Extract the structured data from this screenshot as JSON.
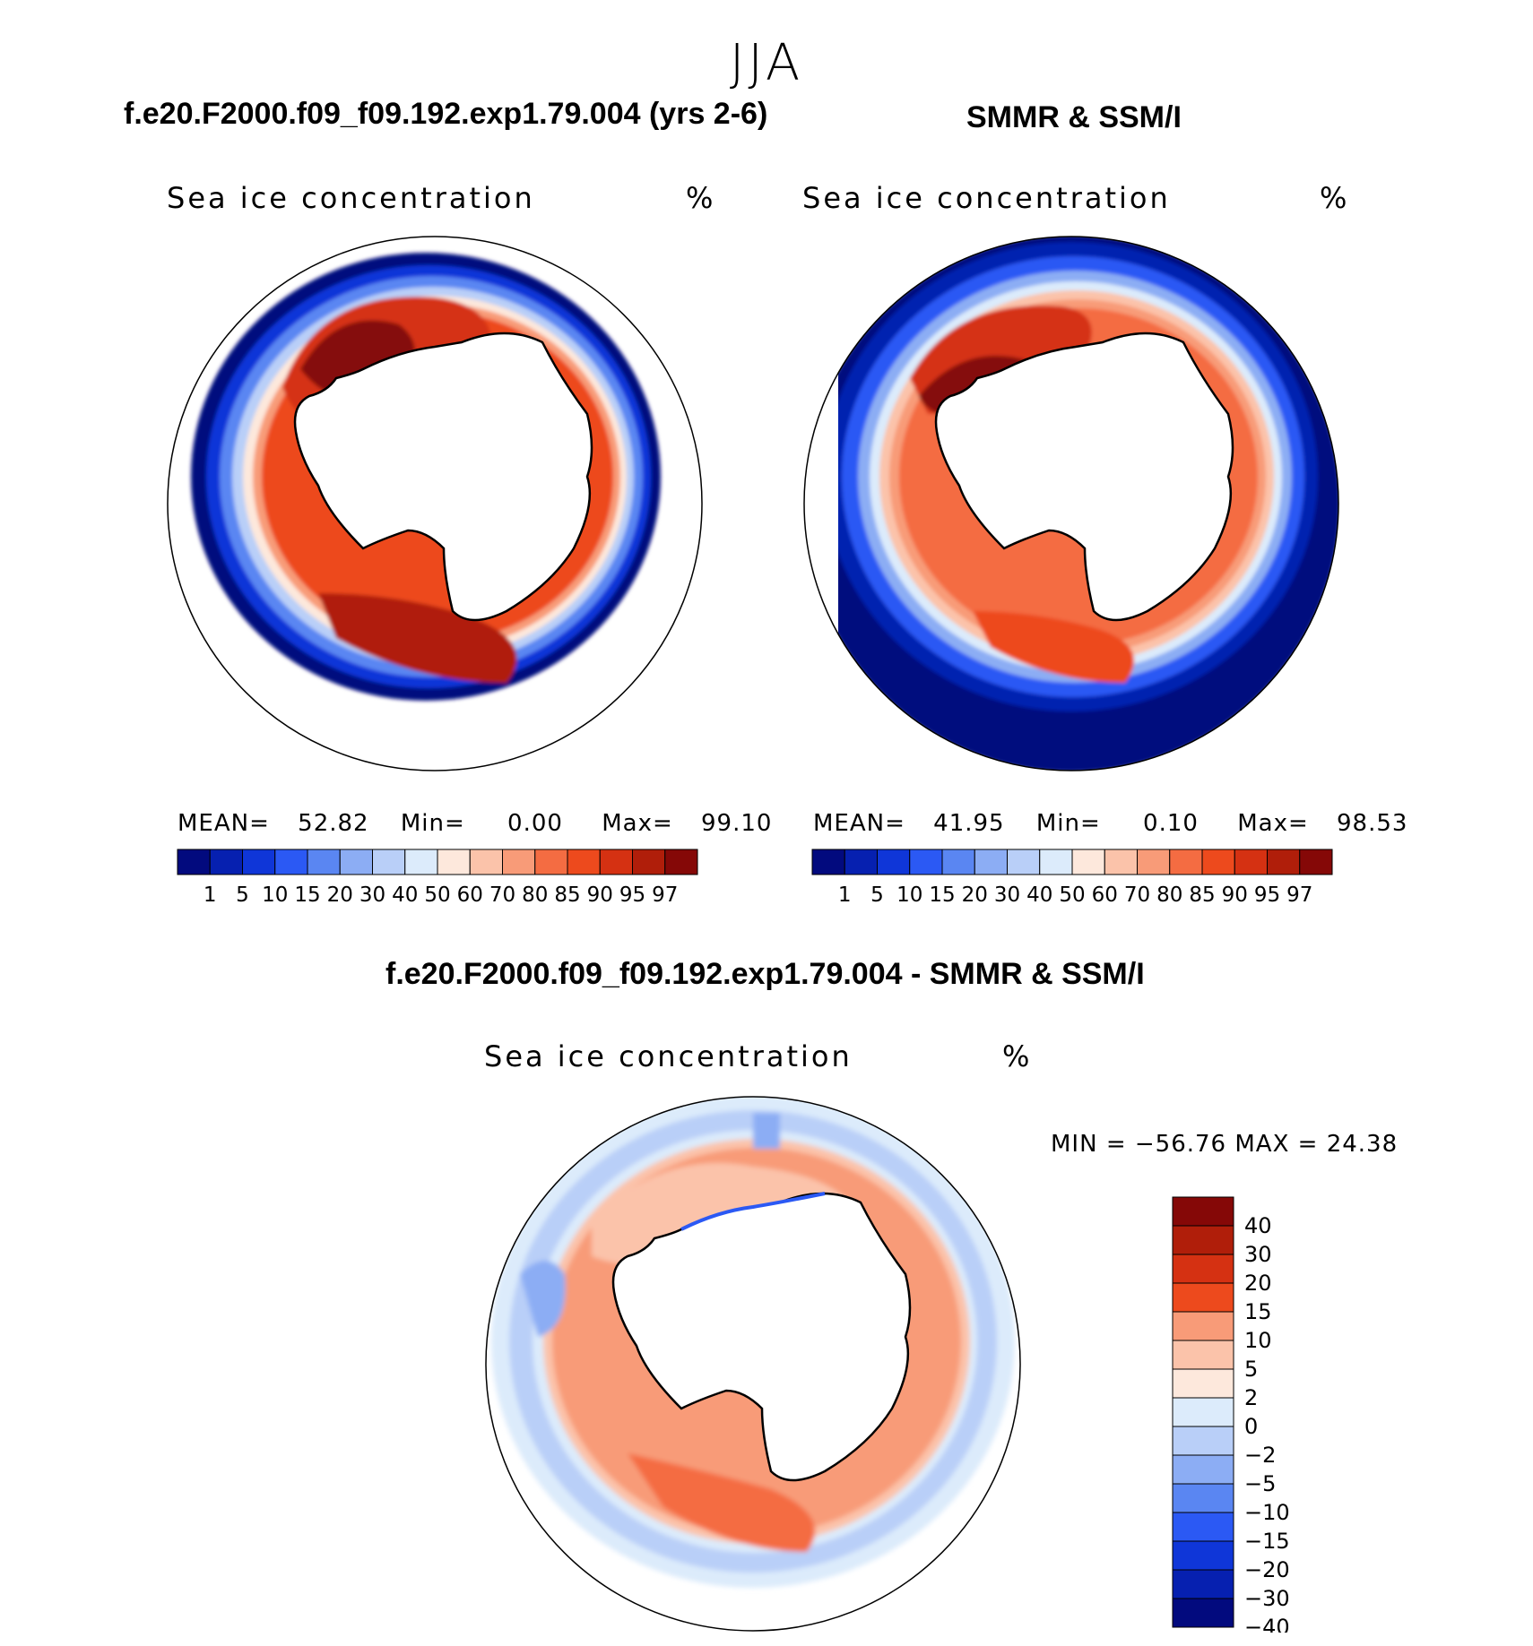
{
  "season": "JJA",
  "panels": [
    {
      "title": "f.e20.F2000.f09_f09.192.exp1.79.004 (yrs 2-6)",
      "variable": "Sea ice concentration",
      "units": "%",
      "stats": {
        "mean_label": "MEAN=",
        "mean": "52.82",
        "min_label": "Min=",
        "min": "0.00",
        "max_label": "Max=",
        "max": "99.10"
      }
    },
    {
      "title": "SMMR & SSM/I",
      "variable": "Sea ice concentration",
      "units": "%",
      "stats": {
        "mean_label": "MEAN=",
        "mean": "41.95",
        "min_label": "Min=",
        "min": "0.10",
        "max_label": "Max=",
        "max": "98.53"
      }
    },
    {
      "title": "f.e20.F2000.f09_f09.192.exp1.79.004 - SMMR & SSM/I",
      "variable": "Sea ice concentration",
      "units": "%",
      "stats_text": "MIN = −56.76 MAX =   24.38"
    }
  ],
  "concentration_scale": {
    "levels": [
      "1",
      "5",
      "10",
      "15",
      "20",
      "30",
      "40",
      "50",
      "60",
      "70",
      "80",
      "85",
      "90",
      "95",
      "97"
    ],
    "colors": [
      "#020a7e",
      "#0620b0",
      "#0f36d8",
      "#2b59f4",
      "#5a86f2",
      "#8cadf4",
      "#b9cff8",
      "#dcebfb",
      "#fde8dc",
      "#fbc3aa",
      "#f89b78",
      "#f46c42",
      "#ed4a1d",
      "#d53112",
      "#b01e0a",
      "#850807"
    ]
  },
  "difference_scale": {
    "levels": [
      "40",
      "30",
      "20",
      "15",
      "10",
      "5",
      "2",
      "0",
      "−2",
      "−5",
      "−10",
      "−15",
      "−20",
      "−30",
      "−40"
    ],
    "colors": [
      "#850807",
      "#b01e0a",
      "#d53112",
      "#ed4a1d",
      "#f89b78",
      "#fbc3aa",
      "#fde8dc",
      "#dcebfb",
      "#b9cff8",
      "#8cadf4",
      "#5a86f2",
      "#2b59f4",
      "#0f36d8",
      "#0620b0",
      "#020a7e"
    ]
  }
}
